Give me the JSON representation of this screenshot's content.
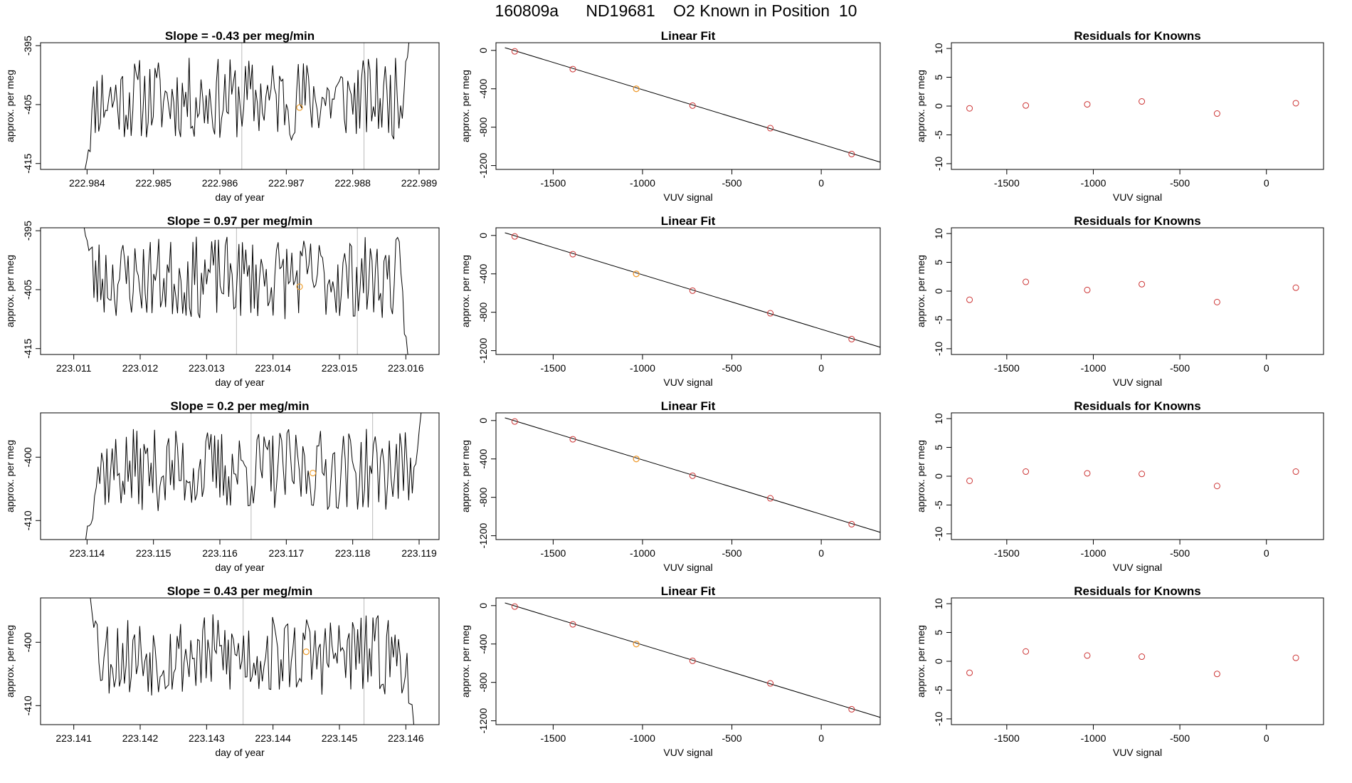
{
  "page": {
    "title": "160809a      ND19681    O2 Known in Position  10"
  },
  "styles": {
    "trace_color": "#000000",
    "box_color": "#000000",
    "vline_color": "#bbbbbb",
    "known_point_color": "#cc3333",
    "highlight_point_color": "#f0a030"
  },
  "chart_data": [
    {
      "type": "line",
      "panel": "trace",
      "row": 1,
      "title": "Slope =  -0.43  per meg/min",
      "xlabel": "day of year",
      "ylabel": "approx. per meg",
      "xlim": [
        222.9833,
        222.9893
      ],
      "ylim": [
        -416,
        -394.5
      ],
      "xticks": [
        222.984,
        222.985,
        222.986,
        222.987,
        222.988,
        222.989
      ],
      "xtick_labels": [
        "222.984",
        "222.985",
        "222.986",
        "222.987",
        "222.988",
        "222.989"
      ],
      "yticks": [
        -395,
        -405,
        -415
      ],
      "ytick_labels": [
        "-395",
        "-405",
        "-415"
      ],
      "vlines": [
        222.98633,
        222.98817
      ],
      "highlight_point": {
        "x": 222.9872,
        "y": -405.5
      },
      "trace": {
        "x_start": 222.98397,
        "x_end": 222.98885,
        "seed": 11,
        "level": -404,
        "amplitude": 7,
        "start_y": -416,
        "end_y": -394
      }
    },
    {
      "type": "line",
      "panel": "fit",
      "row": 1,
      "title": "Linear Fit",
      "xlabel": "VUV signal",
      "ylabel": "approx. per meg",
      "xlim": [
        -1820,
        330
      ],
      "ylim": [
        -1240,
        80
      ],
      "xticks": [
        -1500,
        -1000,
        -500,
        0
      ],
      "xtick_labels": [
        "-1500",
        "-1000",
        "-500",
        "0"
      ],
      "yticks": [
        0,
        -400,
        -800,
        -1200
      ],
      "ytick_labels": [
        "0",
        "-400",
        "-800",
        "-1200"
      ],
      "fit_line": {
        "x": [
          -1770,
          340
        ],
        "y": [
          28,
          -1170
        ]
      },
      "known_points": {
        "x": [
          -1715,
          -1390,
          -1035,
          -720,
          -285,
          170
        ],
        "y": [
          -10,
          -195,
          -400,
          -575,
          -810,
          -1080
        ]
      },
      "highlight_point": {
        "x": -1035,
        "y": -400
      }
    },
    {
      "type": "scatter",
      "panel": "residuals",
      "row": 1,
      "title": "Residuals for Knowns",
      "xlabel": "VUV signal",
      "ylabel": "approx. per meg",
      "xlim": [
        -1820,
        330
      ],
      "ylim": [
        -11,
        11
      ],
      "xticks": [
        -1500,
        -1000,
        -500,
        0
      ],
      "xtick_labels": [
        "-1500",
        "-1000",
        "-500",
        "0"
      ],
      "yticks": [
        10,
        5,
        0,
        -5,
        -10
      ],
      "ytick_labels": [
        "10",
        "5",
        "0",
        "-5",
        "-10"
      ],
      "x": [
        -1715,
        -1390,
        -1035,
        -720,
        -285,
        170
      ],
      "y": [
        -0.4,
        0.1,
        0.3,
        0.8,
        -1.3,
        0.5
      ]
    },
    {
      "type": "line",
      "panel": "trace",
      "row": 2,
      "title": "Slope =  0.97  per meg/min",
      "xlabel": "day of year",
      "ylabel": "approx. per meg",
      "xlim": [
        223.0105,
        223.0165
      ],
      "ylim": [
        -416,
        -394.5
      ],
      "xticks": [
        223.011,
        223.012,
        223.013,
        223.014,
        223.015,
        223.016
      ],
      "xtick_labels": [
        "223.011",
        "223.012",
        "223.013",
        "223.014",
        "223.015",
        "223.016"
      ],
      "yticks": [
        -395,
        -405,
        -415
      ],
      "ytick_labels": [
        "-395",
        "-405",
        "-415"
      ],
      "vlines": [
        223.01345,
        223.01527
      ],
      "highlight_point": {
        "x": 223.0144,
        "y": -404.5
      },
      "trace": {
        "x_start": 223.01115,
        "x_end": 223.01603,
        "seed": 23,
        "level": -403,
        "amplitude": 7,
        "start_y": -394,
        "end_y": -416
      }
    },
    {
      "type": "line",
      "panel": "fit",
      "row": 2,
      "title": "Linear Fit",
      "xlabel": "VUV signal",
      "ylabel": "approx. per meg",
      "xlim": [
        -1820,
        330
      ],
      "ylim": [
        -1240,
        80
      ],
      "xticks": [
        -1500,
        -1000,
        -500,
        0
      ],
      "xtick_labels": [
        "-1500",
        "-1000",
        "-500",
        "0"
      ],
      "yticks": [
        0,
        -400,
        -800,
        -1200
      ],
      "ytick_labels": [
        "0",
        "-400",
        "-800",
        "-1200"
      ],
      "fit_line": {
        "x": [
          -1770,
          340
        ],
        "y": [
          28,
          -1170
        ]
      },
      "known_points": {
        "x": [
          -1715,
          -1390,
          -1035,
          -720,
          -285,
          170
        ],
        "y": [
          -10,
          -195,
          -400,
          -575,
          -810,
          -1080
        ]
      },
      "highlight_point": {
        "x": -1035,
        "y": -400
      }
    },
    {
      "type": "scatter",
      "panel": "residuals",
      "row": 2,
      "title": "Residuals for Knowns",
      "xlabel": "VUV signal",
      "ylabel": "approx. per meg",
      "xlim": [
        -1820,
        330
      ],
      "ylim": [
        -11,
        11
      ],
      "xticks": [
        -1500,
        -1000,
        -500,
        0
      ],
      "xtick_labels": [
        "-1500",
        "-1000",
        "-500",
        "0"
      ],
      "yticks": [
        10,
        5,
        0,
        -5,
        -10
      ],
      "ytick_labels": [
        "10",
        "5",
        "0",
        "-5",
        "-10"
      ],
      "x": [
        -1715,
        -1390,
        -1035,
        -720,
        -285,
        170
      ],
      "y": [
        -1.5,
        1.6,
        0.2,
        1.2,
        -1.9,
        0.6
      ]
    },
    {
      "type": "line",
      "panel": "trace",
      "row": 3,
      "title": "Slope =  0.2  per meg/min",
      "xlabel": "day of year",
      "ylabel": "approx. per meg",
      "xlim": [
        223.1133,
        223.1193
      ],
      "ylim": [
        -413,
        -393
      ],
      "xticks": [
        223.114,
        223.115,
        223.116,
        223.117,
        223.118,
        223.119
      ],
      "xtick_labels": [
        "223.114",
        "223.115",
        "223.116",
        "223.117",
        "223.118",
        "223.119"
      ],
      "yticks": [
        -400,
        -410
      ],
      "ytick_labels": [
        "-400",
        "-410"
      ],
      "vlines": [
        223.11647,
        223.1183
      ],
      "highlight_point": {
        "x": 223.1174,
        "y": -402.5
      },
      "trace": {
        "x_start": 223.11398,
        "x_end": 223.11903,
        "seed": 37,
        "level": -402,
        "amplitude": 6.5,
        "start_y": -413,
        "end_y": -393
      }
    },
    {
      "type": "line",
      "panel": "fit",
      "row": 3,
      "title": "Linear Fit",
      "xlabel": "VUV signal",
      "ylabel": "approx. per meg",
      "xlim": [
        -1820,
        330
      ],
      "ylim": [
        -1240,
        80
      ],
      "xticks": [
        -1500,
        -1000,
        -500,
        0
      ],
      "xtick_labels": [
        "-1500",
        "-1000",
        "-500",
        "0"
      ],
      "yticks": [
        0,
        -400,
        -800,
        -1200
      ],
      "ytick_labels": [
        "0",
        "-400",
        "-800",
        "-1200"
      ],
      "fit_line": {
        "x": [
          -1770,
          340
        ],
        "y": [
          28,
          -1170
        ]
      },
      "known_points": {
        "x": [
          -1715,
          -1390,
          -1035,
          -720,
          -285,
          170
        ],
        "y": [
          -10,
          -195,
          -400,
          -575,
          -810,
          -1080
        ]
      },
      "highlight_point": {
        "x": -1035,
        "y": -400
      }
    },
    {
      "type": "scatter",
      "panel": "residuals",
      "row": 3,
      "title": "Residuals for Knowns",
      "xlabel": "VUV signal",
      "ylabel": "approx. per meg",
      "xlim": [
        -1820,
        330
      ],
      "ylim": [
        -11,
        11
      ],
      "xticks": [
        -1500,
        -1000,
        -500,
        0
      ],
      "xtick_labels": [
        "-1500",
        "-1000",
        "-500",
        "0"
      ],
      "yticks": [
        10,
        5,
        0,
        -5,
        -10
      ],
      "ytick_labels": [
        "10",
        "5",
        "0",
        "-5",
        "-10"
      ],
      "x": [
        -1715,
        -1390,
        -1035,
        -720,
        -285,
        170
      ],
      "y": [
        -0.8,
        0.8,
        0.5,
        0.4,
        -1.7,
        0.8
      ]
    },
    {
      "type": "line",
      "panel": "trace",
      "row": 4,
      "title": "Slope =  0.43  per meg/min",
      "xlabel": "day of year",
      "ylabel": "approx. per meg",
      "xlim": [
        223.1405,
        223.1465
      ],
      "ylim": [
        -413,
        -393
      ],
      "xticks": [
        223.141,
        223.142,
        223.143,
        223.144,
        223.145,
        223.146
      ],
      "xtick_labels": [
        "223.141",
        "223.142",
        "223.143",
        "223.144",
        "223.145",
        "223.146"
      ],
      "yticks": [
        -400,
        -410
      ],
      "ytick_labels": [
        "-400",
        "-410"
      ],
      "vlines": [
        223.14355,
        223.14537
      ],
      "highlight_point": {
        "x": 223.1445,
        "y": -401.5
      },
      "trace": {
        "x_start": 223.14125,
        "x_end": 223.14612,
        "seed": 53,
        "level": -402,
        "amplitude": 6.5,
        "start_y": -393,
        "end_y": -413
      }
    },
    {
      "type": "line",
      "panel": "fit",
      "row": 4,
      "title": "Linear Fit",
      "xlabel": "VUV signal",
      "ylabel": "approx. per meg",
      "xlim": [
        -1820,
        330
      ],
      "ylim": [
        -1240,
        80
      ],
      "xticks": [
        -1500,
        -1000,
        -500,
        0
      ],
      "xtick_labels": [
        "-1500",
        "-1000",
        "-500",
        "0"
      ],
      "yticks": [
        0,
        -400,
        -800,
        -1200
      ],
      "ytick_labels": [
        "0",
        "-400",
        "-800",
        "-1200"
      ],
      "fit_line": {
        "x": [
          -1770,
          340
        ],
        "y": [
          28,
          -1170
        ]
      },
      "known_points": {
        "x": [
          -1715,
          -1390,
          -1035,
          -720,
          -285,
          170
        ],
        "y": [
          -10,
          -195,
          -400,
          -575,
          -810,
          -1080
        ]
      },
      "highlight_point": {
        "x": -1035,
        "y": -400
      }
    },
    {
      "type": "scatter",
      "panel": "residuals",
      "row": 4,
      "title": "Residuals for Knowns",
      "xlabel": "VUV signal",
      "ylabel": "approx. per meg",
      "xlim": [
        -1820,
        330
      ],
      "ylim": [
        -11,
        11
      ],
      "xticks": [
        -1500,
        -1000,
        -500,
        0
      ],
      "xtick_labels": [
        "-1500",
        "-1000",
        "-500",
        "0"
      ],
      "yticks": [
        10,
        5,
        0,
        -5,
        -10
      ],
      "ytick_labels": [
        "10",
        "5",
        "0",
        "-5",
        "-10"
      ],
      "x": [
        -1715,
        -1390,
        -1035,
        -720,
        -285,
        170
      ],
      "y": [
        -2.0,
        1.7,
        1.0,
        0.8,
        -2.2,
        0.6
      ]
    }
  ]
}
